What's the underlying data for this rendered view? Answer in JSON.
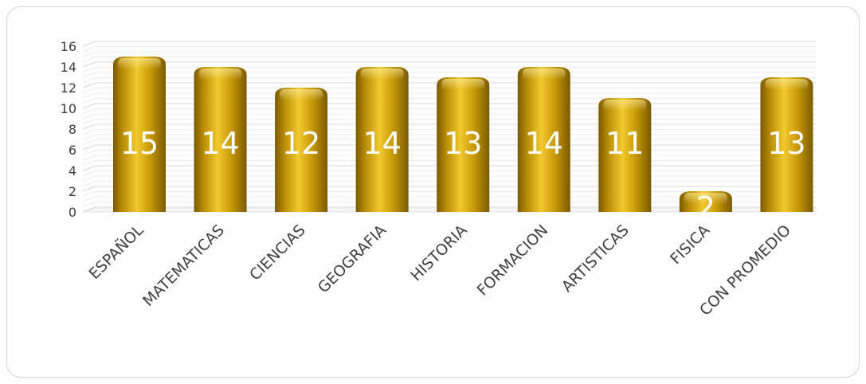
{
  "chart_data": {
    "type": "bar",
    "categories": [
      "ESPAÑOL",
      "MATEMATICAS",
      "CIENCIAS",
      "GEOGRAFIA",
      "HISTORIA",
      "FORMACION",
      "ARTISTICAS",
      "FISICA",
      "CON PROMEDIO"
    ],
    "values": [
      15,
      14,
      12,
      14,
      13,
      14,
      11,
      2,
      13
    ],
    "data_labels": [
      "15",
      "14",
      "12",
      "14",
      "13",
      "14",
      "11",
      "2",
      "13"
    ],
    "ylim": [
      0,
      16
    ],
    "yticks": [
      "0",
      "2",
      "4",
      "6",
      "8",
      "10",
      "12",
      "14",
      "16"
    ],
    "grid": true,
    "legend": "none",
    "colors": {
      "bar_light": "#f2c92e",
      "bar_mid": "#c99a08",
      "bar_dark": "#7a5a00",
      "grid": "#e3e3e3",
      "text": "#404040"
    }
  }
}
